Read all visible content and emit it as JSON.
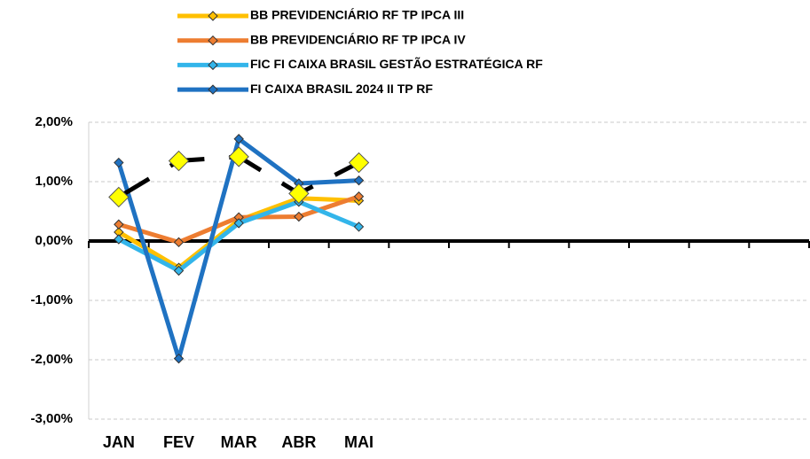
{
  "chart_data": {
    "type": "line",
    "categories": [
      "JAN",
      "FEV",
      "MAR",
      "ABR",
      "MAI",
      null,
      null,
      null,
      null,
      null,
      null,
      null
    ],
    "series": [
      {
        "name": "BB PREVIDENCIÁRIO RF TP IPCA III",
        "color": "#ffc000",
        "values": [
          0.15,
          -0.45,
          0.35,
          0.72,
          0.68,
          null,
          null,
          null,
          null,
          null,
          null,
          null
        ]
      },
      {
        "name": "BB PREVIDENCIÁRIO RF TP IPCA IV",
        "color": "#ed7d31",
        "values": [
          0.28,
          -0.02,
          0.4,
          0.41,
          0.75,
          null,
          null,
          null,
          null,
          null,
          null,
          null
        ]
      },
      {
        "name": "FIC FI CAIXA BRASIL GESTÃO ESTRATÉGICA RF",
        "color": "#33b5ea",
        "values": [
          0.03,
          -0.5,
          0.3,
          0.66,
          0.24,
          null,
          null,
          null,
          null,
          null,
          null,
          null
        ]
      },
      {
        "name": "FI CAIXA BRASIL 2024 II TP RF",
        "color": "#1f72c2",
        "values": [
          1.32,
          -1.98,
          1.72,
          0.97,
          1.02,
          null,
          null,
          null,
          null,
          null,
          null,
          null
        ]
      },
      {
        "color": "#000000",
        "marker_color": "#ffff00",
        "values": [
          0.74,
          1.35,
          1.42,
          0.8,
          1.32,
          null,
          null,
          null,
          null,
          null,
          null,
          null
        ]
      }
    ],
    "ylim": [
      -3,
      2
    ],
    "yticks": [
      {
        "value": -3,
        "label": "-3,00%"
      },
      {
        "value": -2,
        "label": "-2,00%"
      },
      {
        "value": -1,
        "label": "-1,00%"
      },
      {
        "value": 0,
        "label": "0,00%"
      },
      {
        "value": 1,
        "label": "1,00%"
      },
      {
        "value": 2,
        "label": "2,00%"
      }
    ],
    "grid": true
  }
}
